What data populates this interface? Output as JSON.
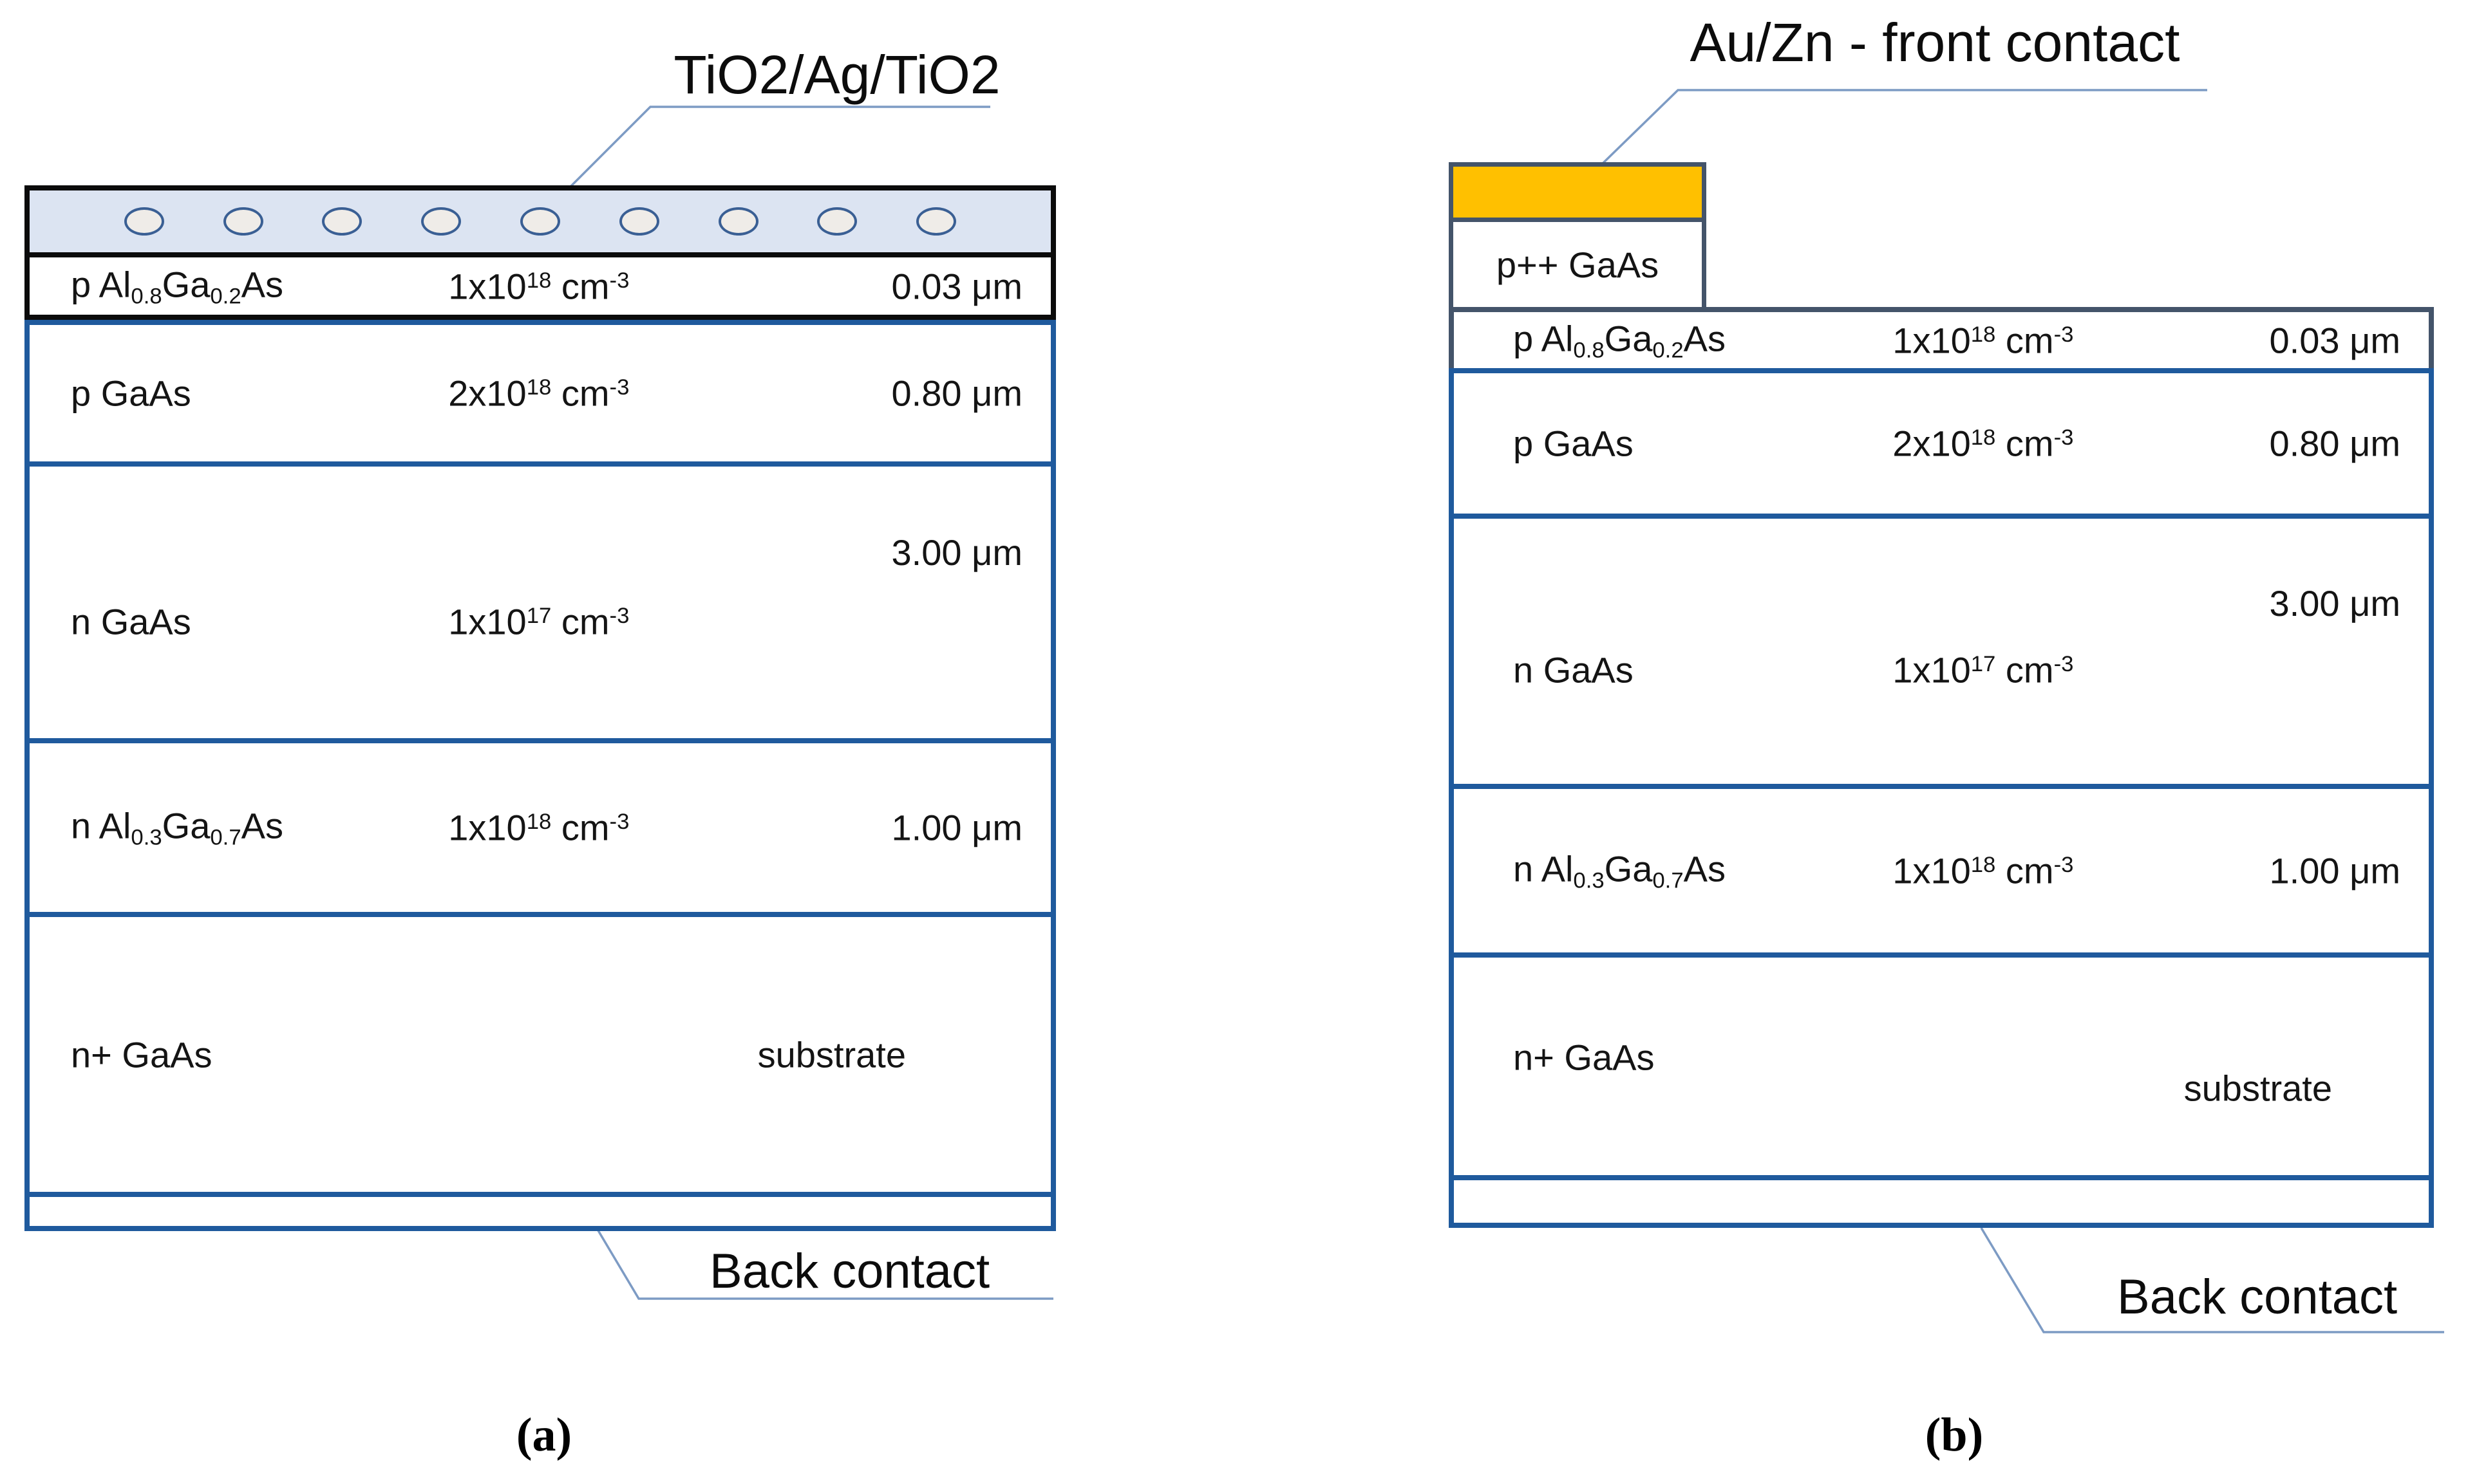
{
  "figure": {
    "background": "#ffffff",
    "colors": {
      "black_border": "#0b0b0b",
      "blue_border": "#1f5a9d",
      "slate_border": "#44546a",
      "orange_contact": "#ffc000",
      "arc_fill": "#dce4f2",
      "ellipse_stroke": "#3a5f94",
      "ellipse_fill": "#efece8",
      "back_contact_gray": "#d9d9d9",
      "leader_line": "#7d9bc4"
    }
  },
  "panels": [
    {
      "caption": "(a)",
      "top_label": "TiO2/Ag/TiO2",
      "bottom_label": "Back contact",
      "arc": {
        "description": "textured TiO2/Ag/TiO2 transparent top contact layer",
        "ellipse_count": 9
      },
      "layers": [
        {
          "material": "p Al_{0.8}Ga_{0.2}As",
          "doping": "1x10^{18}  cm^{-3}",
          "thickness": "0.03 μm"
        },
        {
          "material": "p GaAs",
          "doping": "2x10^{18} cm^{-3}",
          "thickness": "0.80 μm"
        },
        {
          "material": "n GaAs",
          "doping": "1x10^{17} cm^{-3}",
          "thickness": "3.00 μm"
        },
        {
          "material": "n Al_{0.3}Ga_{0.7}As",
          "doping": "1x10^{18} cm^{-3}",
          "thickness": "1.00 μm"
        },
        {
          "material": "n+ GaAs",
          "doping": "",
          "thickness": "substrate"
        }
      ]
    },
    {
      "caption": "(b)",
      "top_label": "Au/Zn -  front contact",
      "bottom_label": "Back contact",
      "cap_layer_label": "p++ GaAs",
      "layers": [
        {
          "material": "p Al_{0.8}Ga_{0.2}As",
          "doping": "1x10^{18} cm^{-3}",
          "thickness": "0.03 μm"
        },
        {
          "material": "p GaAs",
          "doping": "2x10^{18} cm^{-3}",
          "thickness": "0.80 μm"
        },
        {
          "material": "n GaAs",
          "doping": "1x10^{17} cm^{-3}",
          "thickness": "3.00 μm"
        },
        {
          "material": "n Al_{0.3}Ga_{0.7}As",
          "doping": "1x10^{18} cm^{-3}",
          "thickness": "1.00 μm"
        },
        {
          "material": "n+ GaAs",
          "doping": "",
          "thickness": "substrate"
        }
      ]
    }
  ]
}
